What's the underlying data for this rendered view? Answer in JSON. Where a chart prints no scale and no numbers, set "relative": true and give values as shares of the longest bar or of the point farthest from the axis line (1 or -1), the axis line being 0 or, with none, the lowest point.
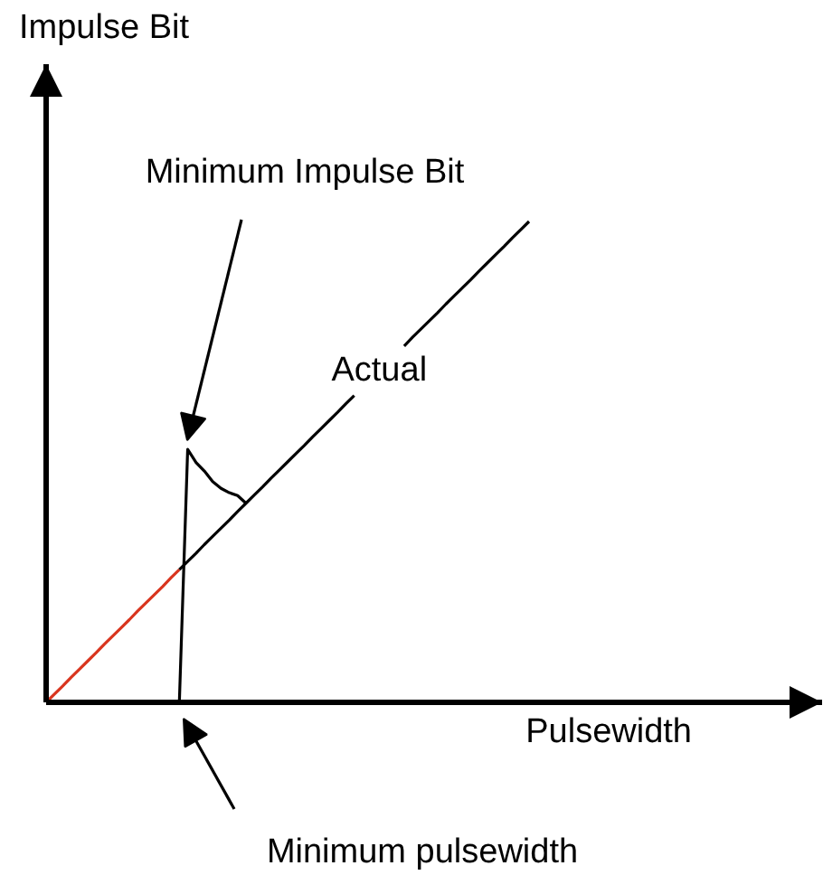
{
  "chart_data": {
    "type": "line",
    "relative": true,
    "xlabel": "Pulsewidth",
    "categories": [
      null,
      null,
      null,
      null,
      null,
      null,
      null,
      null,
      null,
      null,
      null,
      null,
      null,
      null,
      null,
      null,
      null,
      null,
      null,
      null,
      null,
      null,
      null,
      null,
      null,
      null,
      null,
      null,
      null,
      null,
      null,
      null,
      null,
      null,
      null,
      null,
      null,
      null,
      null,
      null,
      null,
      null,
      null,
      null,
      null,
      null,
      null,
      null,
      null,
      null,
      null,
      null,
      null,
      null,
      null,
      null,
      null,
      null,
      null
    ],
    "series": [
      {
        "color": "#d9351e",
        "values": [
          0,
          0.017,
          0.034,
          0.052,
          0.069,
          0.086,
          0.103,
          0.121,
          0.138,
          0.155,
          0.172,
          0.19,
          0.207,
          0.224,
          0.241,
          0.259,
          0.276,
          null,
          null,
          null,
          null,
          null,
          null,
          null,
          null,
          null,
          null,
          null,
          null,
          null,
          null,
          null,
          null,
          null,
          null,
          null,
          null,
          null,
          null,
          null,
          null,
          null,
          null,
          null,
          null,
          null,
          null,
          null,
          null,
          null,
          null,
          null,
          null,
          null,
          null,
          null,
          null,
          null,
          null
        ]
      },
      {
        "name": "Actual",
        "color": "#000000",
        "values": [
          null,
          null,
          null,
          null,
          null,
          null,
          null,
          null,
          null,
          null,
          null,
          null,
          null,
          null,
          null,
          null,
          0.276,
          0.293,
          0.31,
          0.328,
          0.345,
          0.362,
          0.379,
          0.397,
          0.414,
          0.431,
          0.448,
          0.466,
          0.483,
          0.5,
          0.517,
          0.534,
          0.552,
          0.569,
          0.586,
          0.603,
          0.621,
          0.638,
          null,
          null,
          null,
          null,
          null,
          0.741,
          0.759,
          0.776,
          0.793,
          0.81,
          0.828,
          0.845,
          0.862,
          0.879,
          0.897,
          0.914,
          0.931,
          0.948,
          0.966,
          0.983,
          1
        ]
      },
      {
        "color": "#000000",
        "values": [
          null,
          null,
          null,
          null,
          null,
          null,
          null,
          null,
          null,
          null,
          null,
          null,
          null,
          null,
          null,
          null,
          0,
          0.526,
          0.499,
          0.481,
          0.459,
          0.445,
          0.436,
          0.43,
          0.414,
          null,
          null,
          null,
          null,
          null,
          null,
          null,
          null,
          null,
          null,
          null,
          null,
          null,
          null,
          null,
          null,
          null,
          null,
          null,
          null,
          null,
          null,
          null,
          null,
          null,
          null,
          null,
          null,
          null,
          null,
          null,
          null,
          null,
          null
        ]
      }
    ],
    "annotations": [
      "Impulse Bit",
      "Minimum Impulse Bit",
      "Minimum pulsewidth"
    ]
  }
}
